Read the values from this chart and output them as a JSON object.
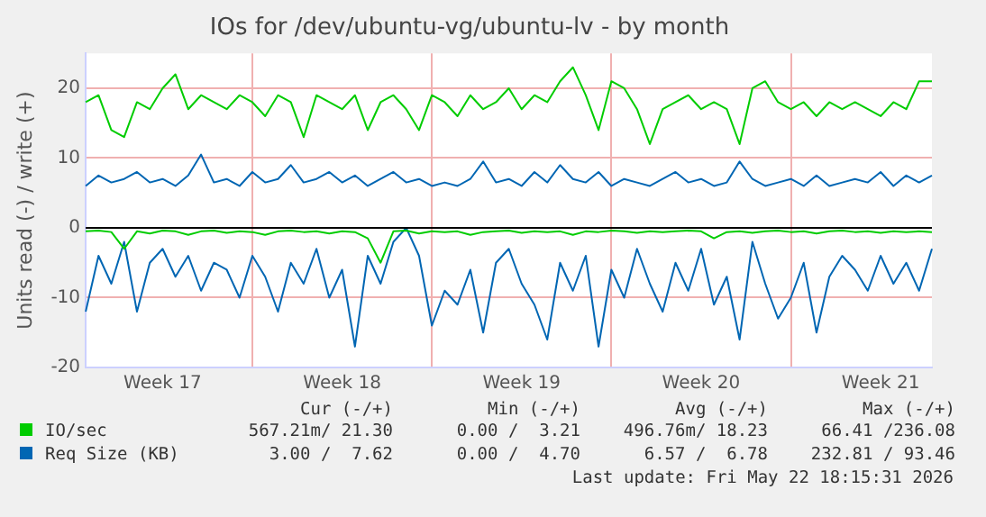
{
  "chart_data": {
    "type": "line",
    "title": "IOs for /dev/ubuntu-vg/ubuntu-lv - by month",
    "ylabel": "Units read (-) / write (+)",
    "categories": [
      null,
      null,
      null,
      null,
      null,
      null,
      "Week 17",
      null,
      null,
      null,
      null,
      null,
      null,
      null,
      null,
      null,
      null,
      null,
      null,
      null,
      "Week 18",
      null,
      null,
      null,
      null,
      null,
      null,
      null,
      null,
      null,
      null,
      null,
      null,
      null,
      "Week 19",
      null,
      null,
      null,
      null,
      null,
      null,
      null,
      null,
      null,
      null,
      null,
      null,
      null,
      "Week 20",
      null,
      null,
      null,
      null,
      null,
      null,
      null,
      null,
      null,
      null,
      null,
      null,
      null,
      "Week 21",
      null,
      null,
      null,
      null
    ],
    "series": [
      {
        "name": "IO/sec",
        "color": "#00cc00",
        "values": [
          18,
          19,
          14,
          13,
          18,
          17,
          20,
          22,
          17,
          19,
          18,
          17,
          19,
          18,
          16,
          19,
          18,
          13,
          19,
          18,
          17,
          19,
          14,
          18,
          19,
          17,
          14,
          19,
          18,
          16,
          19,
          17,
          18,
          20,
          17,
          19,
          18,
          21,
          23,
          19,
          14,
          21,
          20,
          17,
          12,
          17,
          18,
          19,
          17,
          18,
          17,
          12,
          20,
          21,
          18,
          17,
          18,
          16,
          18,
          17,
          18,
          17,
          16,
          18,
          17,
          21,
          21
        ]
      },
      {
        "color": "#00cc00",
        "values": [
          -0.5,
          -0.4,
          -0.6,
          -3,
          -0.5,
          -0.8,
          -0.4,
          -0.5,
          -1,
          -0.5,
          -0.4,
          -0.7,
          -0.5,
          -0.6,
          -1,
          -0.5,
          -0.4,
          -0.6,
          -0.5,
          -0.8,
          -0.5,
          -0.6,
          -1.5,
          -5,
          -0.5,
          -0.4,
          -0.8,
          -0.5,
          -0.6,
          -0.5,
          -1,
          -0.6,
          -0.5,
          -0.4,
          -0.7,
          -0.5,
          -0.6,
          -0.5,
          -1,
          -0.5,
          -0.6,
          -0.4,
          -0.5,
          -0.7,
          -0.5,
          -0.6,
          -0.5,
          -0.4,
          -0.5,
          -1.5,
          -0.6,
          -0.5,
          -0.7,
          -0.5,
          -0.4,
          -0.6,
          -0.5,
          -0.8,
          -0.5,
          -0.4,
          -0.6,
          -0.5,
          -0.7,
          -0.5,
          -0.6,
          -0.5,
          -0.6
        ]
      },
      {
        "name": "Req Size (KB)",
        "color": "#0066b3",
        "values": [
          6,
          7.5,
          6.5,
          7,
          8,
          6.5,
          7,
          6,
          7.5,
          10.5,
          6.5,
          7,
          6,
          8,
          6.5,
          7,
          9,
          6.5,
          7,
          8,
          6.5,
          7.5,
          6,
          7,
          8,
          6.5,
          7,
          6,
          6.5,
          6,
          7,
          9.5,
          6.5,
          7,
          6,
          8,
          6.5,
          9,
          7,
          6.5,
          8,
          6,
          7,
          6.5,
          6,
          7,
          8,
          6.5,
          7,
          6,
          6.5,
          9.5,
          7,
          6,
          6.5,
          7,
          6,
          7.5,
          6,
          6.5,
          7,
          6.5,
          8,
          6,
          7.5,
          6.5,
          7.5
        ]
      },
      {
        "color": "#0066b3",
        "values": [
          -12,
          -4,
          -8,
          -2,
          -12,
          -5,
          -3,
          -7,
          -4,
          -9,
          -5,
          -6,
          -10,
          -4,
          -7,
          -12,
          -5,
          -8,
          -3,
          -10,
          -6,
          -17,
          -4,
          -8,
          -2,
          0,
          -4,
          -14,
          -9,
          -11,
          -6,
          -15,
          -5,
          -3,
          -8,
          -11,
          -16,
          -5,
          -9,
          -4,
          -17,
          -6,
          -10,
          -3,
          -8,
          -12,
          -5,
          -9,
          -3,
          -11,
          -7,
          -16,
          -2,
          -8,
          -13,
          -10,
          -5,
          -15,
          -7,
          -4,
          -6,
          -9,
          -4,
          -8,
          -5,
          -9,
          -3
        ]
      }
    ],
    "ylim": [
      -20,
      25
    ],
    "yticks": [
      -20,
      -10,
      0,
      10,
      20
    ],
    "ref_lines": [
      {
        "axis": "y",
        "value": 0,
        "color": "#000000"
      }
    ],
    "grid": true,
    "legend": "bottom",
    "marker": "none",
    "line_style": "solid",
    "annotations": [
      "Cur (-/+)",
      "Min (-/+)",
      "Avg (-/+)",
      "Max (-/+)",
      "567.21m/ 21.30",
      "0.00 /  3.21",
      "496.76m/ 18.23",
      "66.41 /236.08",
      "3.00 /  7.62",
      "0.00 /  4.70",
      "6.57 /  6.78",
      "232.81 / 93.46",
      "Last update: Fri May 22 18:15:31 2026"
    ]
  }
}
